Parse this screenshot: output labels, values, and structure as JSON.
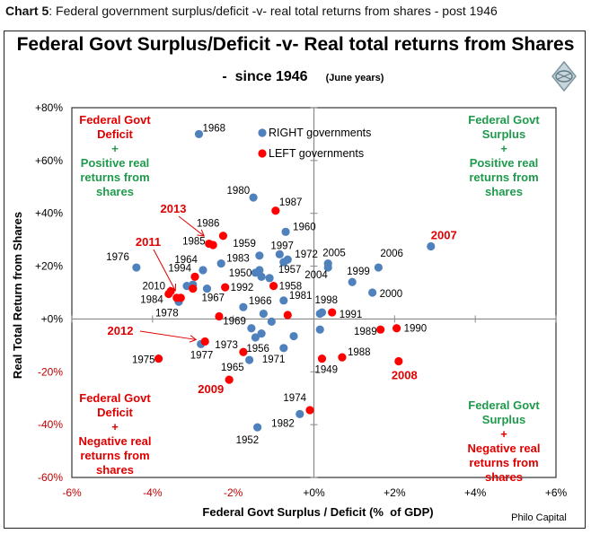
{
  "caption": {
    "bold": "Chart 5",
    "rest": ": Federal government surplus/deficit -v- real total returns from shares - post 1946"
  },
  "footer_credit": "Philo Capital",
  "logo_icon": "globe-logo-icon",
  "colors": {
    "right": "#4f81bd",
    "left": "#ff0000",
    "green_text": "#1f9a4c",
    "red_text": "#e00000",
    "axis_neg": "#c00000"
  },
  "quadrant_labels": {
    "top_left": [
      "Federal Govt",
      "Deficit",
      "+",
      "Positive real",
      "returns from",
      "shares"
    ],
    "top_right": [
      "Federal Govt",
      "Surplus",
      "+",
      "Positive real",
      "returns from",
      "shares"
    ],
    "bottom_left": [
      "Federal Govt",
      "Deficit",
      "+",
      "Negative real",
      "returns from",
      "shares"
    ],
    "bottom_right": [
      "Federal Govt",
      "Surplus",
      "+",
      "Negative real",
      "returns from",
      "shares"
    ]
  },
  "chart_data": {
    "type": "scatter",
    "title": "Federal Govt Surplus/Deficit -v- Real total returns from Shares",
    "subtitle": "-  since 1946",
    "subtitle_note": "(June years)",
    "xlabel": "Federal Govt Surplus / Deficit (%  of GDP)",
    "ylabel": "Real Total Return from Shares",
    "xlim": [
      -6,
      6
    ],
    "ylim": [
      -60,
      80
    ],
    "x_ticks": [
      "-6%",
      "-4%",
      "-2%",
      "+0%",
      "+2%",
      "+4%",
      "+6%"
    ],
    "y_ticks": [
      "+80%",
      "+60%",
      "+40%",
      "+20%",
      "+0%",
      "-20%",
      "-40%",
      "-60%"
    ],
    "grid": false,
    "legend": {
      "position": "top-center",
      "entries": [
        {
          "name": "RIGHT governments",
          "series": "right"
        },
        {
          "name": "LEFT governments",
          "series": "left"
        }
      ]
    },
    "series": [
      {
        "name": "RIGHT governments",
        "key": "right",
        "points": [
          {
            "label": "1968",
            "x": -2.85,
            "y": 70
          },
          {
            "label": "1980",
            "x": -1.5,
            "y": 46
          },
          {
            "label": "1960",
            "x": -0.7,
            "y": 33
          },
          {
            "label": "1959",
            "x": -1.35,
            "y": 24
          },
          {
            "label": "1997",
            "x": -0.85,
            "y": 24.5
          },
          {
            "label": "1972",
            "x": -0.65,
            "y": 22.5
          },
          {
            "label": "1957",
            "x": -0.75,
            "y": 21.5
          },
          {
            "label": "1983",
            "x": -2.3,
            "y": 21
          },
          {
            "label": "1964",
            "x": -2.75,
            "y": 18.5
          },
          {
            "label": "1976",
            "x": -4.4,
            "y": 19.5
          },
          {
            "label": "1950",
            "x": -1.45,
            "y": 17.5
          },
          {
            "label": "",
            "x": -1.35,
            "y": 18.5
          },
          {
            "label": "",
            "x": -1.3,
            "y": 16
          },
          {
            "label": "",
            "x": -1.1,
            "y": 15.5
          },
          {
            "label": "",
            "x": -3.15,
            "y": 12.5
          },
          {
            "label": "",
            "x": -3.0,
            "y": 13
          },
          {
            "label": "1967",
            "x": -2.65,
            "y": 11.5
          },
          {
            "label": "1978",
            "x": -3.35,
            "y": 6.5
          },
          {
            "label": "1966",
            "x": -1.75,
            "y": 4.5
          },
          {
            "label": "1981",
            "x": -0.75,
            "y": 7
          },
          {
            "label": "",
            "x": -1.25,
            "y": 2
          },
          {
            "label": "",
            "x": -1.05,
            "y": -1
          },
          {
            "label": "1969",
            "x": -1.55,
            "y": -3.5
          },
          {
            "label": "",
            "x": -1.3,
            "y": -5.5
          },
          {
            "label": "1956",
            "x": -1.45,
            "y": -7
          },
          {
            "label": "",
            "x": -0.5,
            "y": -6.5
          },
          {
            "label": "1971",
            "x": -0.75,
            "y": -11
          },
          {
            "label": "1977",
            "x": -2.8,
            "y": -9.5
          },
          {
            "label": "1965",
            "x": -1.6,
            "y": -15.5
          },
          {
            "label": "1982",
            "x": -0.35,
            "y": -36
          },
          {
            "label": "1952",
            "x": -1.4,
            "y": -41
          },
          {
            "label": "2005",
            "x": 0.35,
            "y": 21
          },
          {
            "label": "2004",
            "x": 0.35,
            "y": 19.5
          },
          {
            "label": "1999",
            "x": 0.95,
            "y": 14
          },
          {
            "label": "2006",
            "x": 1.6,
            "y": 19.5
          },
          {
            "label": "2000",
            "x": 1.45,
            "y": 10
          },
          {
            "label": "2007",
            "x": 2.9,
            "y": 27.5
          },
          {
            "label": "1998",
            "x": 0.2,
            "y": 2.5
          },
          {
            "label": "",
            "x": 0.15,
            "y": 2
          },
          {
            "label": "",
            "x": 0.15,
            "y": -4
          }
        ]
      },
      {
        "name": "LEFT governments",
        "key": "left",
        "points": [
          {
            "label": "1987",
            "x": -0.95,
            "y": 41
          },
          {
            "label": "1986",
            "x": -2.25,
            "y": 31.5
          },
          {
            "label": "1985",
            "x": -2.6,
            "y": 28.5
          },
          {
            "label": "2013",
            "x": -2.5,
            "y": 28
          },
          {
            "label": "1994",
            "x": -2.95,
            "y": 16
          },
          {
            "label": "",
            "x": -3.0,
            "y": 11.5
          },
          {
            "label": "2011",
            "x": -3.3,
            "y": 8
          },
          {
            "label": "",
            "x": -3.4,
            "y": 8
          },
          {
            "label": "2010",
            "x": -3.55,
            "y": 10.5
          },
          {
            "label": "1984",
            "x": -3.6,
            "y": 9.5
          },
          {
            "label": "1992",
            "x": -2.2,
            "y": 12
          },
          {
            "label": "1958",
            "x": -1.0,
            "y": 12.5
          },
          {
            "label": "",
            "x": -2.35,
            "y": 1
          },
          {
            "label": "",
            "x": -0.65,
            "y": 1.5
          },
          {
            "label": "1991",
            "x": 0.45,
            "y": 2.5
          },
          {
            "label": "2012",
            "x": -2.7,
            "y": -8.5
          },
          {
            "label": "1973",
            "x": -1.75,
            "y": -12.5
          },
          {
            "label": "1975",
            "x": -3.85,
            "y": -15
          },
          {
            "label": "2009",
            "x": -2.1,
            "y": -23
          },
          {
            "label": "1974",
            "x": -0.1,
            "y": -34.5
          },
          {
            "label": "1989",
            "x": 1.65,
            "y": -4
          },
          {
            "label": "1990",
            "x": 2.05,
            "y": -3.5
          },
          {
            "label": "1949",
            "x": 0.2,
            "y": -15
          },
          {
            "label": "1988",
            "x": 0.7,
            "y": -14.5
          },
          {
            "label": "2008",
            "x": 2.1,
            "y": -16
          }
        ]
      }
    ],
    "annotations": [
      {
        "text": "2013",
        "target": "2013"
      },
      {
        "text": "2011",
        "target": "2011"
      },
      {
        "text": "2012",
        "target": "2012"
      }
    ]
  }
}
